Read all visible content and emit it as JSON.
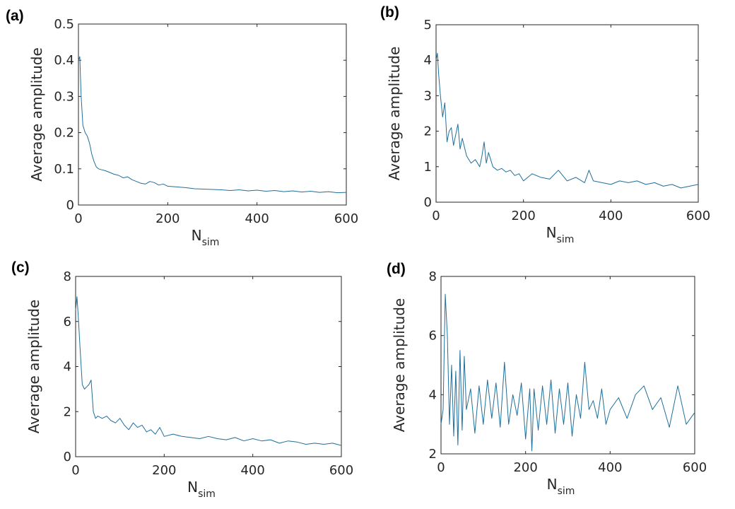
{
  "chart_data": [
    {
      "type": "line",
      "panel_label": "(a)",
      "xlabel": "N",
      "xlabel_sub": "sim",
      "ylabel": "Average amplitude",
      "xlim": [
        0,
        600
      ],
      "ylim": [
        0,
        0.5
      ],
      "xticks": [
        0,
        200,
        400,
        600
      ],
      "xtick_labels": [
        "0",
        "200",
        "400",
        "600"
      ],
      "yticks": [
        0,
        0.1,
        0.2,
        0.3,
        0.4,
        0.5
      ],
      "ytick_labels": [
        "0",
        "0.1",
        "0.2",
        "0.3",
        "0.4",
        "0.5"
      ],
      "grid": false,
      "color": "#1f6f9a",
      "series": [
        {
          "x": [
            0,
            3,
            6,
            10,
            15,
            20,
            25,
            30,
            35,
            40,
            45,
            50,
            60,
            70,
            80,
            90,
            100,
            110,
            120,
            130,
            140,
            150,
            160,
            170,
            180,
            190,
            200,
            220,
            240,
            260,
            280,
            300,
            320,
            340,
            360,
            380,
            400,
            420,
            440,
            460,
            480,
            500,
            520,
            540,
            560,
            580,
            600
          ],
          "y": [
            0.4,
            0.41,
            0.3,
            0.22,
            0.2,
            0.19,
            0.17,
            0.14,
            0.12,
            0.105,
            0.1,
            0.098,
            0.095,
            0.09,
            0.085,
            0.082,
            0.075,
            0.078,
            0.07,
            0.065,
            0.06,
            0.058,
            0.065,
            0.062,
            0.055,
            0.058,
            0.052,
            0.05,
            0.048,
            0.045,
            0.044,
            0.043,
            0.042,
            0.04,
            0.042,
            0.039,
            0.041,
            0.038,
            0.04,
            0.037,
            0.039,
            0.036,
            0.038,
            0.035,
            0.037,
            0.034,
            0.035
          ]
        }
      ]
    },
    {
      "type": "line",
      "panel_label": "(b)",
      "xlabel": "N",
      "xlabel_sub": "sim",
      "ylabel": "Average amplitude",
      "xlim": [
        0,
        600
      ],
      "ylim": [
        0,
        5
      ],
      "xticks": [
        0,
        200,
        400,
        600
      ],
      "xtick_labels": [
        "0",
        "200",
        "400",
        "600"
      ],
      "yticks": [
        0,
        1,
        2,
        3,
        4,
        5
      ],
      "ytick_labels": [
        "0",
        "1",
        "2",
        "3",
        "4",
        "5"
      ],
      "grid": false,
      "color": "#1f6f9a",
      "series": [
        {
          "x": [
            0,
            3,
            6,
            10,
            15,
            20,
            25,
            30,
            35,
            40,
            45,
            50,
            55,
            60,
            70,
            80,
            90,
            100,
            105,
            110,
            115,
            120,
            130,
            140,
            150,
            160,
            170,
            180,
            190,
            200,
            220,
            240,
            260,
            280,
            300,
            320,
            340,
            350,
            360,
            380,
            400,
            420,
            440,
            460,
            480,
            500,
            520,
            540,
            560,
            580,
            600
          ],
          "y": [
            4.0,
            4.2,
            3.6,
            3.0,
            2.4,
            2.8,
            1.7,
            2.0,
            2.1,
            1.6,
            1.9,
            2.2,
            1.5,
            1.8,
            1.3,
            1.1,
            1.2,
            1.0,
            1.3,
            1.7,
            1.1,
            1.4,
            1.0,
            0.9,
            0.95,
            0.85,
            0.9,
            0.75,
            0.8,
            0.6,
            0.8,
            0.7,
            0.65,
            0.9,
            0.6,
            0.7,
            0.55,
            0.9,
            0.6,
            0.55,
            0.5,
            0.6,
            0.55,
            0.6,
            0.5,
            0.55,
            0.45,
            0.5,
            0.4,
            0.45,
            0.5
          ]
        }
      ]
    },
    {
      "type": "line",
      "panel_label": "(c)",
      "xlabel": "N",
      "xlabel_sub": "sim",
      "ylabel": "Average amplitude",
      "xlim": [
        0,
        600
      ],
      "ylim": [
        0,
        8
      ],
      "xticks": [
        0,
        200,
        400,
        600
      ],
      "xtick_labels": [
        "0",
        "200",
        "400",
        "600"
      ],
      "yticks": [
        0,
        2,
        4,
        6,
        8
      ],
      "ytick_labels": [
        "0",
        "2",
        "4",
        "6",
        "8"
      ],
      "grid": false,
      "color": "#1f6f9a",
      "series": [
        {
          "x": [
            0,
            3,
            6,
            10,
            15,
            20,
            25,
            30,
            35,
            40,
            45,
            50,
            60,
            70,
            80,
            90,
            100,
            110,
            120,
            130,
            140,
            150,
            160,
            170,
            180,
            190,
            200,
            220,
            240,
            260,
            280,
            300,
            320,
            340,
            360,
            380,
            400,
            420,
            440,
            460,
            480,
            500,
            520,
            540,
            560,
            580,
            600
          ],
          "y": [
            6.5,
            7.1,
            6.2,
            4.8,
            3.2,
            3.0,
            3.1,
            3.2,
            3.4,
            2.0,
            1.7,
            1.8,
            1.7,
            1.8,
            1.6,
            1.5,
            1.7,
            1.4,
            1.2,
            1.5,
            1.3,
            1.4,
            1.1,
            1.2,
            1.0,
            1.3,
            0.9,
            1.0,
            0.9,
            0.85,
            0.8,
            0.9,
            0.8,
            0.75,
            0.85,
            0.7,
            0.8,
            0.7,
            0.75,
            0.6,
            0.7,
            0.65,
            0.55,
            0.6,
            0.55,
            0.6,
            0.5
          ]
        }
      ]
    },
    {
      "type": "line",
      "panel_label": "(d)",
      "xlabel": "N",
      "xlabel_sub": "sim",
      "ylabel": "Average amplitude",
      "xlim": [
        0,
        600
      ],
      "ylim": [
        2,
        8
      ],
      "xticks": [
        0,
        200,
        400,
        600
      ],
      "xtick_labels": [
        "0",
        "200",
        "400",
        "600"
      ],
      "yticks": [
        2,
        4,
        6,
        8
      ],
      "ytick_labels": [
        "2",
        "4",
        "6",
        "8"
      ],
      "grid": false,
      "color": "#1f6f9a",
      "series": [
        {
          "x": [
            0,
            5,
            10,
            15,
            20,
            25,
            30,
            35,
            40,
            45,
            50,
            55,
            60,
            70,
            80,
            90,
            100,
            110,
            120,
            130,
            140,
            150,
            160,
            170,
            180,
            190,
            200,
            210,
            215,
            220,
            230,
            240,
            250,
            260,
            270,
            280,
            290,
            300,
            310,
            320,
            330,
            340,
            350,
            360,
            370,
            380,
            390,
            400,
            420,
            440,
            460,
            480,
            500,
            520,
            540,
            560,
            580,
            600
          ],
          "y": [
            3.0,
            3.5,
            7.4,
            6.0,
            3.0,
            5.0,
            2.6,
            4.8,
            2.3,
            5.5,
            2.8,
            5.3,
            3.5,
            4.2,
            2.7,
            4.3,
            3.0,
            4.5,
            3.2,
            4.4,
            2.9,
            5.1,
            3.0,
            4.0,
            3.3,
            4.4,
            2.5,
            4.2,
            2.1,
            4.2,
            2.8,
            4.3,
            3.0,
            4.5,
            2.7,
            4.2,
            3.0,
            4.4,
            2.6,
            4.0,
            3.2,
            5.1,
            3.5,
            3.8,
            3.2,
            4.2,
            3.0,
            3.5,
            3.9,
            3.2,
            4.0,
            4.3,
            3.5,
            3.9,
            2.9,
            4.3,
            3.0,
            3.4
          ]
        }
      ]
    }
  ]
}
